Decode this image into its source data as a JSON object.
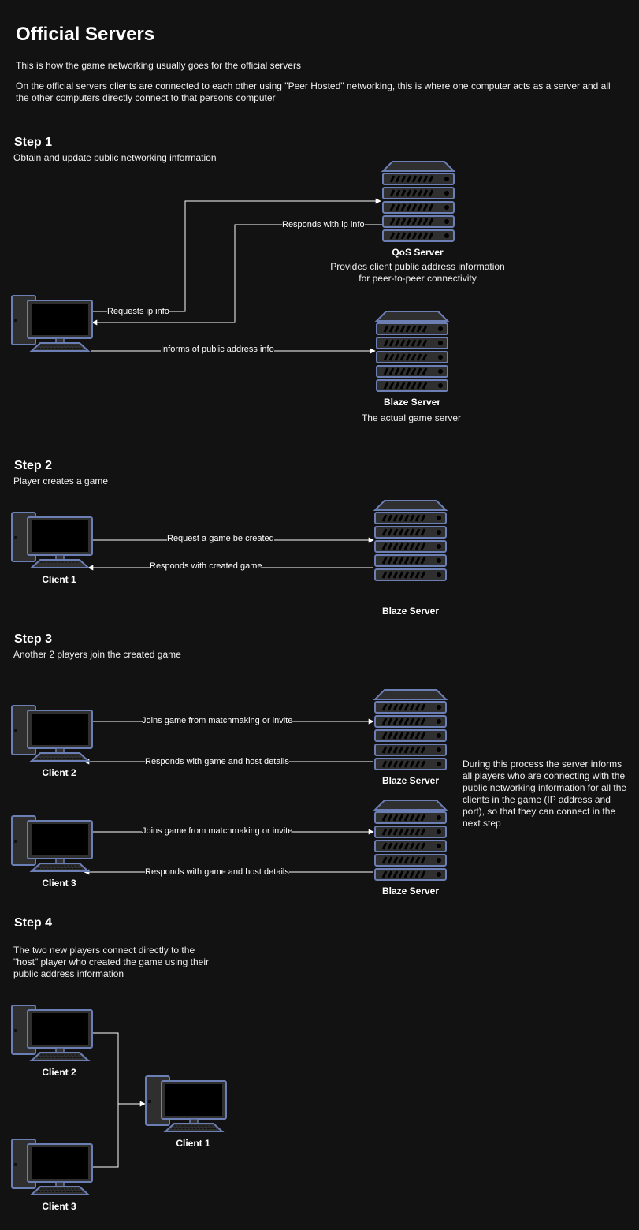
{
  "page": {
    "title": "Official Servers",
    "intro1": "This is how the game networking usually goes for the official servers",
    "intro2": "On the official servers clients are connected to each other using \"Peer Hosted\" networking, this is where one computer acts as a server and all the other computers directly connect to that persons computer"
  },
  "step1": {
    "heading": "Step 1",
    "subtitle": "Obtain and update public networking information",
    "qos_label": "QoS Server",
    "qos_desc": "Provides client public address information for peer-to-peer connectivity",
    "blaze_label": "Blaze Server",
    "blaze_desc": "The actual game server",
    "edge_request": "Requests ip info",
    "edge_response": "Responds with ip info",
    "edge_inform": "Informs of public address info"
  },
  "step2": {
    "heading": "Step 2",
    "subtitle": "Player creates a game",
    "client_label": "Client 1",
    "blaze_label": "Blaze Server",
    "edge_request": "Request a game be created",
    "edge_response": "Responds with created game"
  },
  "step3": {
    "heading": "Step 3",
    "subtitle": "Another 2 players join the created game",
    "client2_label": "Client 2",
    "client3_label": "Client 3",
    "blaze2_label": "Blaze Server",
    "blaze3_label": "Blaze Server",
    "edge_join": "Joins game from matchmaking or invite",
    "edge_response": "Responds with game and host details",
    "note": "During this process the server informs all players who are connecting with the public networking information for all the clients in the game (IP address and port), so that they can connect in the next step"
  },
  "step4": {
    "heading": "Step 4",
    "subtitle": "The two new players connect directly to the \"host\" player who created the game using their public address information",
    "client2_label": "Client 2",
    "client3_label": "Client 3",
    "client1_label": "Client 1"
  },
  "colors": {
    "background": "#121212",
    "icon_stroke": "#6b7fb5",
    "icon_fill": "#2f2f2f",
    "edge": "#ffffff"
  },
  "icons": [
    "computer-icon",
    "server-icon"
  ]
}
